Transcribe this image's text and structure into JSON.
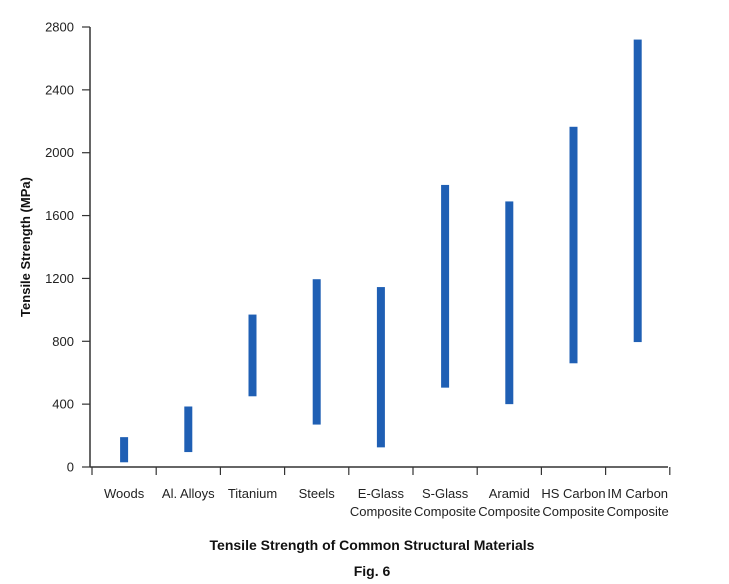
{
  "chart_data": {
    "type": "bar",
    "subtype": "floating-range",
    "title": "Tensile Strength of Common Structural Materials",
    "subtitle": "Fig. 6",
    "xlabel": "",
    "ylabel": "Tensile Strength (MPa)",
    "ylim": [
      0,
      2800
    ],
    "yticks": [
      0,
      400,
      800,
      1200,
      1600,
      2000,
      2400,
      2800
    ],
    "grid": false,
    "bar_color": "#1f5fb4",
    "categories": [
      [
        "Woods"
      ],
      [
        "Al. Alloys"
      ],
      [
        "Titanium"
      ],
      [
        "Steels"
      ],
      [
        "E-Glass",
        "Composite"
      ],
      [
        "S-Glass",
        "Composite"
      ],
      [
        "Aramid",
        "Composite"
      ],
      [
        "HS Carbon",
        "Composite"
      ],
      [
        "IM Carbon",
        "Composite"
      ]
    ],
    "ranges": [
      [
        30,
        190
      ],
      [
        95,
        385
      ],
      [
        450,
        970
      ],
      [
        270,
        1195
      ],
      [
        125,
        1145
      ],
      [
        505,
        1795
      ],
      [
        400,
        1690
      ],
      [
        660,
        2165
      ],
      [
        795,
        2720
      ]
    ]
  }
}
